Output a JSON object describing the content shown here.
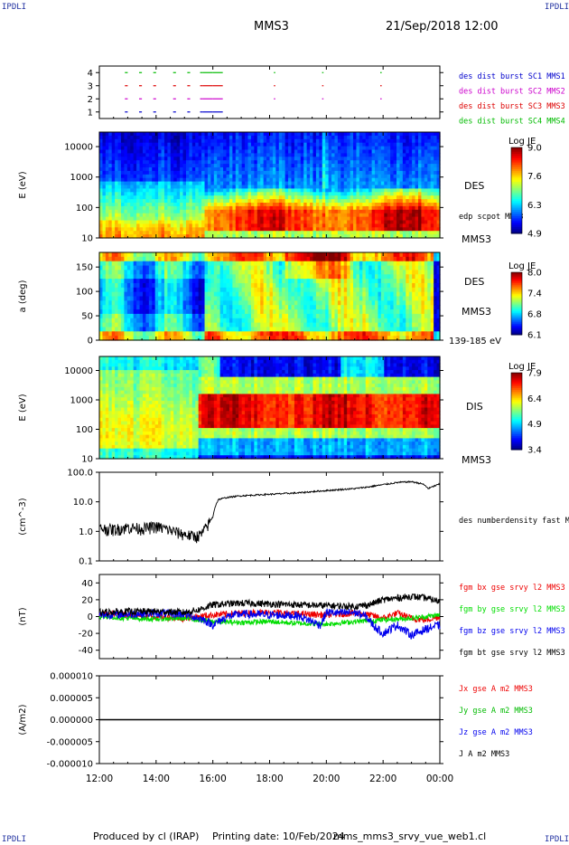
{
  "header": {
    "spacecraft": "MMS3",
    "datetime": "21/Sep/2018 12:00"
  },
  "corners": {
    "top_left": "IPDLI",
    "top_right": "IPDLI",
    "bottom_left": "IPDLI",
    "bottom_right": "IPDLI"
  },
  "footer": {
    "produced_by": "Produced by cl (IRAP)",
    "printing_date": "Printing date: 10/Feb/2024",
    "file": "mms_mms3_srvy_vue_web1.cl"
  },
  "time_axis": {
    "ticks": [
      "12:00",
      "14:00",
      "16:00",
      "18:00",
      "20:00",
      "22:00",
      "00:00"
    ],
    "range_hours": [
      0,
      12
    ]
  },
  "chart_data": [
    {
      "type": "scatter",
      "panel": "burst-availability",
      "yticks": [
        "1",
        "2",
        "3",
        "4"
      ],
      "ylim": [
        0.5,
        4.5
      ],
      "legend": [
        {
          "label": "des dist burst SC1 MMS1",
          "color": "#0000cc"
        },
        {
          "label": "des dist burst SC2 MMS2",
          "color": "#cc00cc"
        },
        {
          "label": "des dist burst SC3 MMS3",
          "color": "#dd0000"
        },
        {
          "label": "des dist burst SC4 MMS4",
          "color": "#00bb00"
        }
      ],
      "intervals_hours": [
        [
          0.9,
          1.0
        ],
        [
          1.4,
          1.5
        ],
        [
          1.9,
          2.0
        ],
        [
          2.6,
          2.7
        ],
        [
          3.1,
          3.2
        ],
        [
          3.55,
          3.65
        ],
        [
          3.65,
          4.0
        ],
        [
          4.0,
          4.35
        ],
        [
          6.15,
          6.2
        ],
        [
          7.85,
          7.9
        ],
        [
          9.9,
          9.95
        ]
      ]
    },
    {
      "type": "heatmap",
      "panel": "des-energy-spectrogram",
      "ylabel": "E (eV)",
      "yscale": "log",
      "ylim": [
        10,
        30000
      ],
      "yticks": [
        "10",
        "100",
        "1000",
        "10000"
      ],
      "label": "DES",
      "overlay_label": "edp scpot MMS3",
      "spacecraft_label": "MMS3",
      "colorbar": {
        "title": "Log JE",
        "ticks": [
          "9.0",
          "7.6",
          "6.3",
          "4.9"
        ],
        "range": [
          4.9,
          9.0
        ]
      }
    },
    {
      "type": "heatmap",
      "panel": "des-pitch-angle",
      "ylabel": "a (deg)",
      "ylim": [
        0,
        180
      ],
      "yticks": [
        "0",
        "50",
        "100",
        "150"
      ],
      "label": "DES",
      "spacecraft_label": "MMS3",
      "energy_label": "139-185 eV",
      "colorbar": {
        "title": "Log JE",
        "ticks": [
          "8.0",
          "7.4",
          "6.8",
          "6.1"
        ],
        "range": [
          6.1,
          8.0
        ]
      }
    },
    {
      "type": "heatmap",
      "panel": "dis-energy-spectrogram",
      "ylabel": "E (eV)",
      "yscale": "log",
      "ylim": [
        10,
        30000
      ],
      "yticks": [
        "10",
        "100",
        "1000",
        "10000"
      ],
      "label": "DIS",
      "spacecraft_label": "MMS3",
      "colorbar": {
        "title": "Log JE",
        "ticks": [
          "7.9",
          "6.4",
          "4.9",
          "3.4"
        ],
        "range": [
          3.4,
          7.9
        ]
      }
    },
    {
      "type": "line",
      "panel": "number-density",
      "ylabel": "(cm^-3)",
      "yscale": "log",
      "ylim": [
        0.1,
        100
      ],
      "yticks": [
        "0.1",
        "1.0",
        "10.0",
        "100.0"
      ],
      "series": [
        {
          "name": "des numberdensity fast M",
          "color": "#000000",
          "x": [
            0,
            0.5,
            1.0,
            1.5,
            2.0,
            2.5,
            3.0,
            3.4,
            3.6,
            3.8,
            4.0,
            4.2,
            4.5,
            5.0,
            6.0,
            7.0,
            8.0,
            8.5,
            9.0,
            9.5,
            10.0,
            10.5,
            11.0,
            11.4,
            11.6,
            12.0
          ],
          "y": [
            1.3,
            1.2,
            1.4,
            1.3,
            1.5,
            1.1,
            0.8,
            0.7,
            0.8,
            1.5,
            3.0,
            12,
            14,
            16,
            18,
            20,
            24,
            26,
            28,
            32,
            38,
            45,
            48,
            40,
            28,
            40
          ]
        }
      ]
    },
    {
      "type": "line",
      "panel": "magnetic-field",
      "ylabel": "(nT)",
      "ylim": [
        -50,
        50
      ],
      "yticks": [
        "-40",
        "-20",
        "0",
        "20",
        "40"
      ],
      "series": [
        {
          "name": "fgm bx gse srvy l2 MMS3",
          "color": "#ee0000",
          "x": [
            0,
            1,
            2,
            3,
            4,
            5,
            6,
            7,
            8,
            9,
            9.5,
            10,
            10.5,
            11,
            11.5,
            12
          ],
          "y": [
            3,
            2,
            0,
            -2,
            2,
            4,
            5,
            3,
            2,
            4,
            2,
            -2,
            4,
            -2,
            -4,
            0
          ]
        },
        {
          "name": "fgm by gse srvy l2 MMS3",
          "color": "#00dd00",
          "x": [
            0,
            1,
            2,
            3,
            4,
            5,
            6,
            7,
            8,
            9,
            10,
            11,
            12
          ],
          "y": [
            0,
            -2,
            -3,
            -2,
            -6,
            -7,
            -6,
            -8,
            -9,
            -6,
            -4,
            -2,
            2
          ]
        },
        {
          "name": "fgm bz gse srvy l2 MMS3",
          "color": "#0000ee",
          "x": [
            0,
            1,
            2,
            3,
            3.7,
            4.0,
            4.5,
            5,
            6,
            7,
            7.8,
            8.0,
            8.5,
            9,
            9.4,
            9.7,
            10,
            10.5,
            11,
            11.5,
            12
          ],
          "y": [
            2,
            3,
            4,
            3,
            -4,
            -10,
            0,
            3,
            2,
            1,
            -10,
            5,
            4,
            5,
            0,
            -12,
            -20,
            -10,
            -22,
            -15,
            -10
          ]
        },
        {
          "name": "fgm bt gse srvy l2 MMS3",
          "color": "#000000",
          "x": [
            0,
            1,
            2,
            3,
            3.5,
            4,
            5,
            6,
            7,
            8,
            9,
            9.5,
            10,
            10.5,
            11,
            11.5,
            12
          ],
          "y": [
            5,
            6,
            6,
            5,
            8,
            14,
            16,
            15,
            14,
            13,
            12,
            14,
            20,
            22,
            24,
            22,
            18
          ]
        }
      ]
    },
    {
      "type": "line",
      "panel": "current-density",
      "ylabel": "(A/m2)",
      "ylim": [
        -0.0001,
        0.0001
      ],
      "yticks": [
        "-0.000010",
        "-0.000005",
        "0.000000",
        "0.000005",
        "0.000010"
      ],
      "series": [
        {
          "name": "Jx gse A m2 MMS3",
          "color": "#ee0000",
          "x": [
            0,
            12
          ],
          "y": [
            0,
            0
          ]
        },
        {
          "name": "Jy gse A m2 MMS3",
          "color": "#00bb00",
          "x": [
            0,
            12
          ],
          "y": [
            0,
            0
          ]
        },
        {
          "name": "Jz gse A m2 MMS3",
          "color": "#0000ee",
          "x": [
            0,
            12
          ],
          "y": [
            0,
            0
          ]
        },
        {
          "name": "J A m2 MMS3",
          "color": "#000000",
          "x": [
            0,
            12
          ],
          "y": [
            0,
            0
          ]
        }
      ]
    }
  ]
}
